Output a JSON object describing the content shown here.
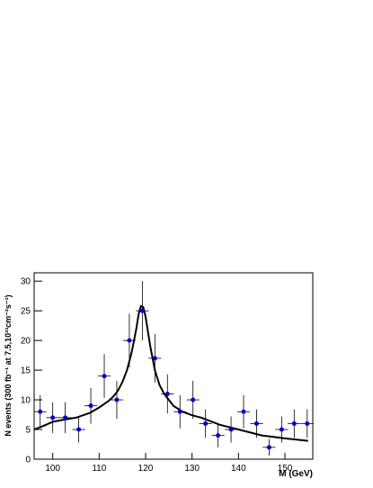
{
  "chart_data": {
    "type": "scatter",
    "x_label": "M (GeV)",
    "y_label": "N events (300 fb⁻¹ at 7.5,10³³cm⁻²s⁻¹)",
    "xlim": [
      96,
      156
    ],
    "ylim": [
      0,
      31.4
    ],
    "xticks": [
      100,
      110,
      120,
      130,
      140,
      150
    ],
    "yticks": [
      0,
      5,
      10,
      15,
      20,
      25,
      30
    ],
    "points": {
      "color": "#0000cc",
      "xerr": 1.37,
      "x": [
        97.3,
        100,
        102.7,
        105.6,
        108.2,
        111.1,
        113.8,
        116.5,
        119.3,
        122,
        124.7,
        127.4,
        130.2,
        132.9,
        135.6,
        138.4,
        141.1,
        143.9,
        146.6,
        149.3,
        152,
        154.8
      ],
      "values": [
        8,
        7,
        7,
        5,
        9,
        14,
        10,
        20,
        25,
        17,
        11,
        8,
        10,
        6,
        4,
        5,
        8,
        6,
        2,
        5,
        6,
        6
      ],
      "yerr": [
        2.8,
        2.6,
        2.6,
        2.2,
        3,
        3.7,
        3.2,
        4.5,
        5,
        4.1,
        3.3,
        2.8,
        3.2,
        2.4,
        2,
        2.2,
        2.8,
        2.4,
        1.4,
        2.2,
        2.4,
        2.4
      ]
    },
    "fit": {
      "color": "#000000",
      "x": [
        96,
        98,
        100,
        102,
        105,
        108,
        110,
        112,
        113,
        114,
        115,
        116,
        117,
        118,
        118.5,
        119,
        119.5,
        120,
        120.5,
        121,
        122,
        123,
        124,
        126,
        128,
        130,
        132,
        136,
        140,
        145,
        150,
        155
      ],
      "values": [
        5,
        5.6,
        6.3,
        6.6,
        7,
        7.8,
        8.7,
        9.8,
        10.5,
        11.5,
        13,
        15,
        18,
        22,
        24.5,
        25.8,
        25.6,
        24,
        21.5,
        19,
        15,
        12.5,
        11,
        9,
        8,
        7.4,
        7,
        5.8,
        5,
        4,
        3.5,
        3.1
      ]
    }
  }
}
